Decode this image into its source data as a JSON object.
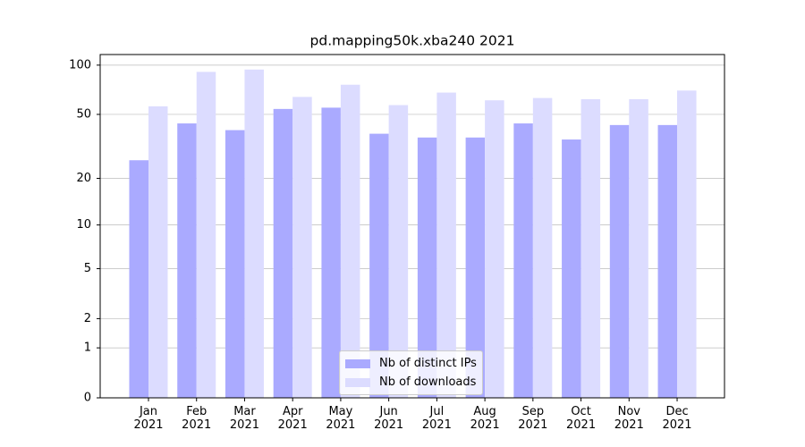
{
  "chart_data": {
    "type": "bar",
    "title": "pd.mapping50k.xba240 2021",
    "categories": [
      "Jan\n2021",
      "Feb\n2021",
      "Mar\n2021",
      "Apr\n2021",
      "May\n2021",
      "Jun\n2021",
      "Jul\n2021",
      "Aug\n2021",
      "Sep\n2021",
      "Oct\n2021",
      "Nov\n2021",
      "Dec\n2021"
    ],
    "series": [
      {
        "name": "Nb of distinct IPs",
        "color": "#aaaaff",
        "values": [
          26,
          44,
          40,
          54,
          55,
          38,
          36,
          36,
          44,
          35,
          43,
          43
        ]
      },
      {
        "name": "Nb of downloads",
        "color": "#dcdcff",
        "values": [
          56,
          91,
          94,
          64,
          76,
          57,
          68,
          61,
          63,
          62,
          62,
          70
        ]
      }
    ],
    "yscale": "log1p",
    "ylim": [
      0,
      116
    ],
    "yticks": [
      0,
      1,
      2,
      5,
      10,
      20,
      50,
      100
    ],
    "grid": true,
    "legend": "lower center"
  }
}
